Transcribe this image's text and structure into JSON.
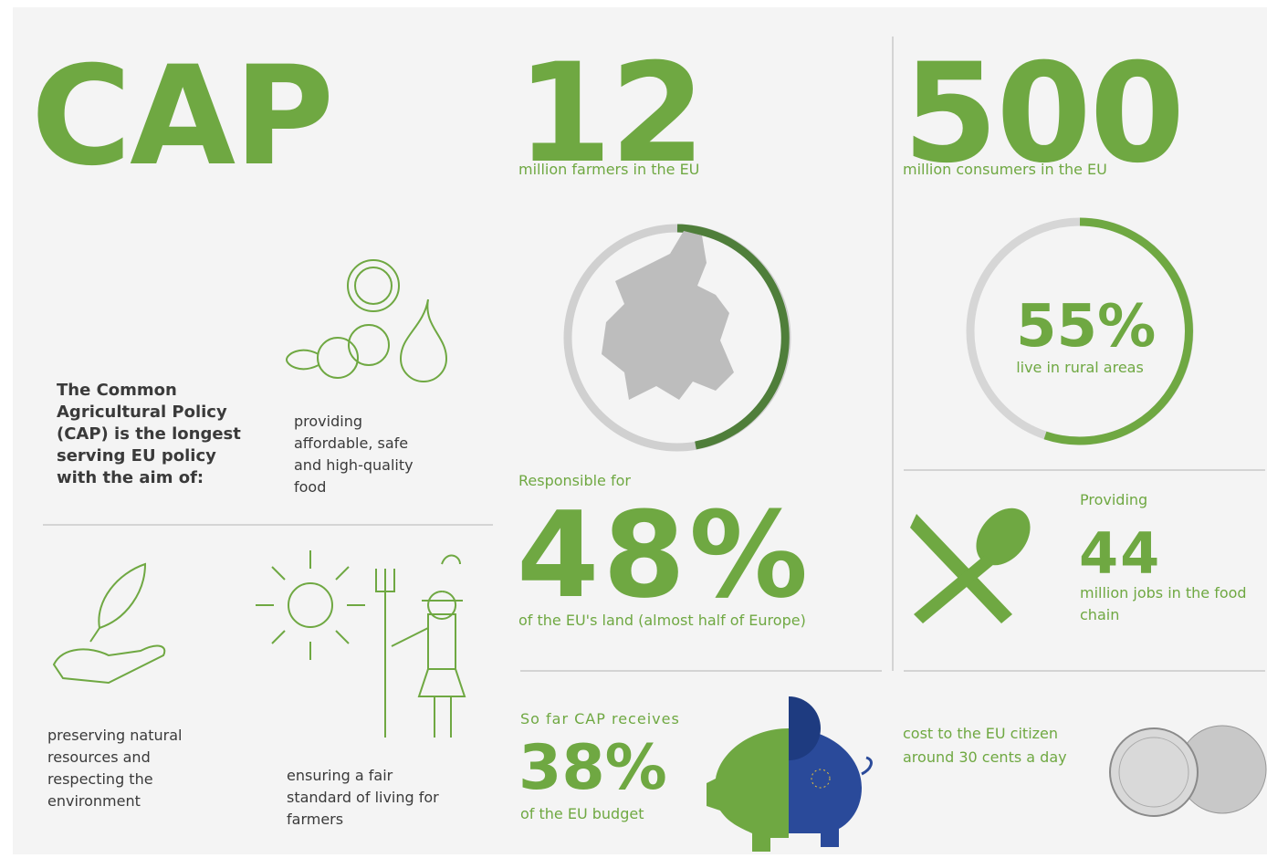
{
  "cap": {
    "title": "CAP",
    "intro": "The Common Agricultural Policy (CAP) is the longest serving EU policy with the aim of:"
  },
  "aims": [
    "providing affordable, safe and high-quality food",
    "preserving natural resources and respecting the environment",
    "ensuring a fair standard of living for farmers"
  ],
  "stats": {
    "farmers": {
      "number": "12",
      "text": "million farmers in the EU"
    },
    "consumers": {
      "number": "500",
      "text": "million consumers in the EU"
    },
    "rural": {
      "number": "55%",
      "text": "live in rural areas"
    },
    "land": {
      "intro": "Responsible for",
      "number": "48%",
      "text": "of the EU's land (almost half of Europe)"
    },
    "jobs": {
      "intro": "Providing",
      "number": "44",
      "text": "million jobs in the food chain"
    },
    "budget": {
      "intro": "So far CAP receives",
      "number": "38%",
      "text": "of the EU budget"
    },
    "cost": {
      "text": "cost to the EU citizen around 30 cents a day"
    }
  }
}
